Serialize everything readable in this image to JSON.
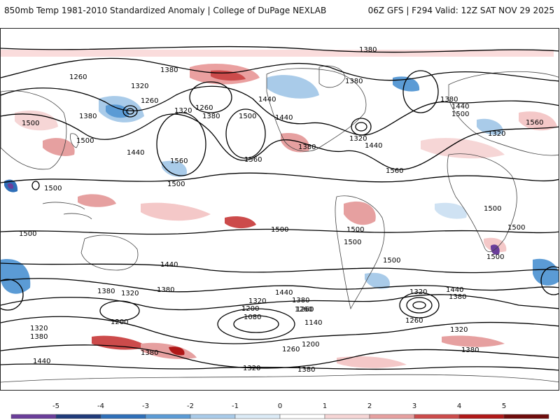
{
  "header": {
    "title_left": "850mb Temp 1981-2010 Standardized Anomaly | College of DuPage NEXLAB",
    "title_right": "06Z GFS | F294 Valid: 12Z SAT NOV 29 2025"
  },
  "colorbar": {
    "ticks": [
      "-5",
      "-4",
      "-3",
      "-2",
      "-1",
      "0",
      "1",
      "2",
      "3",
      "4",
      "5"
    ],
    "colors": [
      "#6a3d9a",
      "#1f3a7a",
      "#2e6fb8",
      "#5b9bd5",
      "#a9cbe9",
      "#dcebf7",
      "#ffffff",
      "#f6d6d6",
      "#e6a0a0",
      "#cc4b4b",
      "#b01818",
      "#6e0b0b",
      "#f2b21c"
    ]
  },
  "map": {
    "contour_labels": [
      "1380",
      "1260",
      "1320",
      "1380",
      "1560",
      "1500",
      "1260",
      "1320",
      "1440",
      "1260",
      "1380",
      "1500",
      "1440",
      "1560",
      "1440",
      "1500",
      "1560",
      "1380",
      "1380",
      "1440",
      "1320",
      "1380",
      "1380",
      "1440",
      "1500",
      "1500",
      "1500",
      "1500",
      "1500",
      "1560",
      "1500",
      "1500",
      "1500",
      "1500",
      "1500",
      "1440",
      "1380",
      "1320",
      "1380",
      "1440",
      "1320",
      "1380",
      "1260",
      "1200",
      "1260",
      "1140",
      "1080",
      "1200",
      "1260",
      "1320",
      "1440",
      "1380",
      "1320",
      "1380",
      "1260",
      "1380",
      "1320",
      "1320",
      "1200",
      "1380",
      "1380",
      "1440",
      "1500",
      "1320"
    ]
  }
}
